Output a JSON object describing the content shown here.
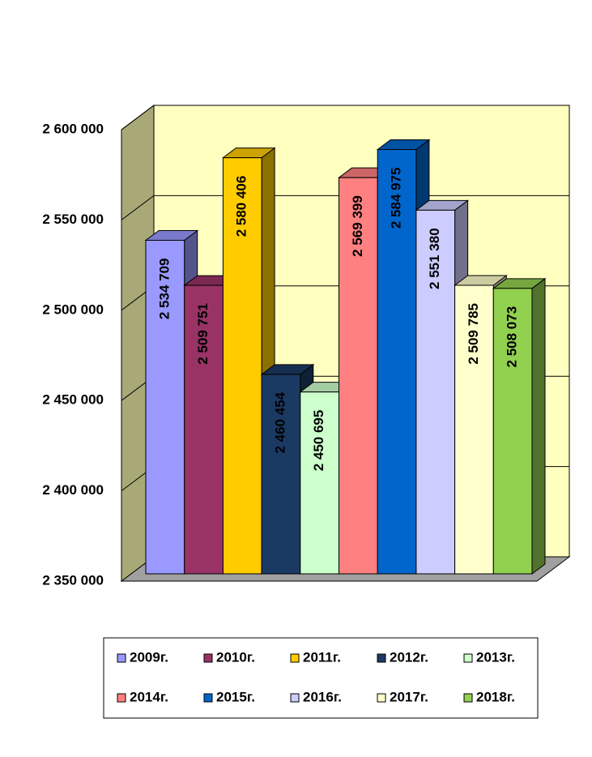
{
  "chart_data": {
    "type": "bar3d",
    "series": [
      {
        "name": "2009г.",
        "color": "#9999ff",
        "values": [
          2534709
        ],
        "value_labels": [
          "2 534 709"
        ]
      },
      {
        "name": "2010г.",
        "color": "#993366",
        "values": [
          2509751
        ],
        "value_labels": [
          "2 509 751"
        ]
      },
      {
        "name": "2011г.",
        "color": "#ffcc00",
        "values": [
          2580406
        ],
        "value_labels": [
          "2 580 406"
        ]
      },
      {
        "name": "2012г.",
        "color": "#1b3a63",
        "values": [
          2460454
        ],
        "value_labels": [
          "2 460 454"
        ]
      },
      {
        "name": "2013г.",
        "color": "#ccffcc",
        "values": [
          2450695
        ],
        "value_labels": [
          "2 450 695"
        ]
      },
      {
        "name": "2014г.",
        "color": "#ff8080",
        "values": [
          2569399
        ],
        "value_labels": [
          "2 569 399"
        ]
      },
      {
        "name": "2015г.",
        "color": "#0066cc",
        "values": [
          2584975
        ],
        "value_labels": [
          "2 584 975"
        ]
      },
      {
        "name": "2016г.",
        "color": "#ccccff",
        "values": [
          2551380
        ],
        "value_labels": [
          "2 551 380"
        ]
      },
      {
        "name": "2017г.",
        "color": "#ffffcc",
        "values": [
          2509785
        ],
        "value_labels": [
          "2 509 785"
        ]
      },
      {
        "name": "2018г.",
        "color": "#92d050",
        "values": [
          2508073
        ],
        "value_labels": [
          "2 508 073"
        ]
      }
    ],
    "ylim": [
      2350000,
      2600000
    ],
    "yticks": [
      {
        "value": 2350000,
        "label": "2 350 000"
      },
      {
        "value": 2400000,
        "label": "2 400 000"
      },
      {
        "value": 2450000,
        "label": "2 450 000"
      },
      {
        "value": 2500000,
        "label": "2 500 000"
      },
      {
        "value": 2550000,
        "label": "2 550 000"
      },
      {
        "value": 2600000,
        "label": "2 600 000"
      }
    ],
    "grid": true
  }
}
